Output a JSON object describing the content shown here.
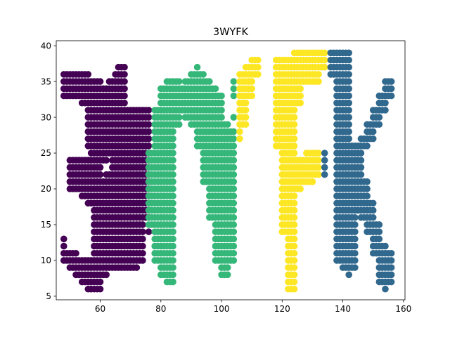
{
  "chart_data": {
    "type": "scatter",
    "title": "3WYFK",
    "xlabel": "",
    "ylabel": "",
    "xlim": [
      45.5,
      160.5
    ],
    "ylim": [
      4.5,
      40.7
    ],
    "xticks": [
      60,
      80,
      100,
      120,
      140,
      160
    ],
    "yticks": [
      5,
      10,
      15,
      20,
      25,
      30,
      35,
      40
    ],
    "grid": false,
    "legend": "none",
    "colors": {
      "purple": "#440154",
      "green": "#35b779",
      "yellow": "#fde725",
      "blue": "#31688e"
    },
    "series": [
      {
        "color": "#440154",
        "rows": [
          {
            "y": 37,
            "x0": 66,
            "x1": 68
          },
          {
            "y": 36,
            "x0": 48,
            "x1": 56
          },
          {
            "y": 36,
            "x0": 65,
            "x1": 68
          },
          {
            "y": 35,
            "x0": 48,
            "x1": 60
          },
          {
            "y": 35,
            "x0": 63,
            "x1": 68
          },
          {
            "y": 34,
            "x0": 48,
            "x1": 68
          },
          {
            "y": 33,
            "x0": 48,
            "x1": 68
          },
          {
            "y": 32,
            "x0": 54,
            "x1": 68
          },
          {
            "y": 31,
            "x0": 56,
            "x1": 76
          },
          {
            "y": 30,
            "x0": 56,
            "x1": 76
          },
          {
            "y": 29,
            "x0": 56,
            "x1": 76
          },
          {
            "y": 28,
            "x0": 56,
            "x1": 76
          },
          {
            "y": 27,
            "x0": 56,
            "x1": 76
          },
          {
            "y": 26,
            "x0": 56,
            "x1": 76
          },
          {
            "y": 25,
            "x0": 57,
            "x1": 76
          },
          {
            "y": 24,
            "x0": 50,
            "x1": 62
          },
          {
            "y": 24,
            "x0": 64,
            "x1": 76
          },
          {
            "y": 23,
            "x0": 50,
            "x1": 60
          },
          {
            "y": 23,
            "x0": 64,
            "x1": 76
          },
          {
            "y": 22,
            "x0": 50,
            "x1": 60
          },
          {
            "y": 22,
            "x0": 62,
            "x1": 76
          },
          {
            "y": 21,
            "x0": 50,
            "x1": 76
          },
          {
            "y": 20,
            "x0": 50,
            "x1": 76
          },
          {
            "y": 19,
            "x0": 54,
            "x1": 76
          },
          {
            "y": 18,
            "x0": 56,
            "x1": 76
          },
          {
            "y": 17,
            "x0": 58,
            "x1": 76
          },
          {
            "y": 16,
            "x0": 58,
            "x1": 76
          },
          {
            "y": 15,
            "x0": 58,
            "x1": 74
          },
          {
            "y": 14,
            "x0": 58,
            "x1": 74
          },
          {
            "y": 14,
            "x0": 76,
            "x1": 76
          },
          {
            "y": 13,
            "x0": 48,
            "x1": 48
          },
          {
            "y": 13,
            "x0": 58,
            "x1": 74
          },
          {
            "y": 12,
            "x0": 48,
            "x1": 48
          },
          {
            "y": 12,
            "x0": 58,
            "x1": 74
          },
          {
            "y": 11,
            "x0": 48,
            "x1": 52
          },
          {
            "y": 11,
            "x0": 58,
            "x1": 74
          },
          {
            "y": 10,
            "x0": 48,
            "x1": 74
          },
          {
            "y": 9,
            "x0": 50,
            "x1": 72
          },
          {
            "y": 8,
            "x0": 52,
            "x1": 62
          },
          {
            "y": 7,
            "x0": 54,
            "x1": 60
          },
          {
            "y": 6,
            "x0": 56,
            "x1": 60
          }
        ]
      },
      {
        "color": "#35b779",
        "rows": [
          {
            "y": 37,
            "x0": 92,
            "x1": 92
          },
          {
            "y": 36,
            "x0": 90,
            "x1": 94
          },
          {
            "y": 35,
            "x0": 82,
            "x1": 86
          },
          {
            "y": 35,
            "x0": 88,
            "x1": 96
          },
          {
            "y": 35,
            "x0": 104,
            "x1": 104
          },
          {
            "y": 34,
            "x0": 80,
            "x1": 98
          },
          {
            "y": 34,
            "x0": 104,
            "x1": 104
          },
          {
            "y": 33,
            "x0": 80,
            "x1": 100
          },
          {
            "y": 33,
            "x0": 104,
            "x1": 104
          },
          {
            "y": 32,
            "x0": 80,
            "x1": 100
          },
          {
            "y": 31,
            "x0": 78,
            "x1": 100
          },
          {
            "y": 30,
            "x0": 78,
            "x1": 86
          },
          {
            "y": 30,
            "x0": 88,
            "x1": 100
          },
          {
            "y": 30,
            "x0": 104,
            "x1": 104
          },
          {
            "y": 29,
            "x0": 78,
            "x1": 86
          },
          {
            "y": 29,
            "x0": 90,
            "x1": 102
          },
          {
            "y": 28,
            "x0": 78,
            "x1": 84
          },
          {
            "y": 28,
            "x0": 92,
            "x1": 104
          },
          {
            "y": 27,
            "x0": 78,
            "x1": 84
          },
          {
            "y": 27,
            "x0": 92,
            "x1": 104
          },
          {
            "y": 26,
            "x0": 78,
            "x1": 84
          },
          {
            "y": 26,
            "x0": 92,
            "x1": 104
          },
          {
            "y": 25,
            "x0": 76,
            "x1": 84
          },
          {
            "y": 25,
            "x0": 94,
            "x1": 104
          },
          {
            "y": 24,
            "x0": 76,
            "x1": 84
          },
          {
            "y": 24,
            "x0": 94,
            "x1": 104
          },
          {
            "y": 23,
            "x0": 76,
            "x1": 84
          },
          {
            "y": 23,
            "x0": 94,
            "x1": 104
          },
          {
            "y": 22,
            "x0": 76,
            "x1": 84
          },
          {
            "y": 22,
            "x0": 94,
            "x1": 104
          },
          {
            "y": 21,
            "x0": 76,
            "x1": 84
          },
          {
            "y": 21,
            "x0": 94,
            "x1": 104
          },
          {
            "y": 20,
            "x0": 76,
            "x1": 84
          },
          {
            "y": 20,
            "x0": 96,
            "x1": 104
          },
          {
            "y": 19,
            "x0": 76,
            "x1": 84
          },
          {
            "y": 19,
            "x0": 96,
            "x1": 104
          },
          {
            "y": 18,
            "x0": 76,
            "x1": 84
          },
          {
            "y": 18,
            "x0": 96,
            "x1": 104
          },
          {
            "y": 17,
            "x0": 76,
            "x1": 84
          },
          {
            "y": 17,
            "x0": 96,
            "x1": 104
          },
          {
            "y": 16,
            "x0": 76,
            "x1": 84
          },
          {
            "y": 16,
            "x0": 96,
            "x1": 104
          },
          {
            "y": 15,
            "x0": 76,
            "x1": 84
          },
          {
            "y": 15,
            "x0": 98,
            "x1": 104
          },
          {
            "y": 14,
            "x0": 78,
            "x1": 84
          },
          {
            "y": 14,
            "x0": 98,
            "x1": 104
          },
          {
            "y": 13,
            "x0": 78,
            "x1": 84
          },
          {
            "y": 13,
            "x0": 98,
            "x1": 104
          },
          {
            "y": 12,
            "x0": 78,
            "x1": 84
          },
          {
            "y": 12,
            "x0": 98,
            "x1": 104
          },
          {
            "y": 11,
            "x0": 78,
            "x1": 84
          },
          {
            "y": 11,
            "x0": 98,
            "x1": 104
          },
          {
            "y": 10,
            "x0": 78,
            "x1": 84
          },
          {
            "y": 10,
            "x0": 98,
            "x1": 104
          },
          {
            "y": 9,
            "x0": 80,
            "x1": 84
          },
          {
            "y": 9,
            "x0": 100,
            "x1": 102
          },
          {
            "y": 8,
            "x0": 80,
            "x1": 84
          },
          {
            "y": 8,
            "x0": 100,
            "x1": 102
          },
          {
            "y": 7,
            "x0": 82,
            "x1": 84
          }
        ]
      },
      {
        "color": "#fde725",
        "rows": [
          {
            "y": 39,
            "x0": 124,
            "x1": 134
          },
          {
            "y": 38,
            "x0": 110,
            "x1": 112
          },
          {
            "y": 38,
            "x0": 118,
            "x1": 134
          },
          {
            "y": 37,
            "x0": 108,
            "x1": 112
          },
          {
            "y": 37,
            "x0": 118,
            "x1": 134
          },
          {
            "y": 36,
            "x0": 106,
            "x1": 112
          },
          {
            "y": 36,
            "x0": 118,
            "x1": 132
          },
          {
            "y": 35,
            "x0": 106,
            "x1": 110
          },
          {
            "y": 35,
            "x0": 118,
            "x1": 132
          },
          {
            "y": 34,
            "x0": 106,
            "x1": 110
          },
          {
            "y": 34,
            "x0": 118,
            "x1": 126
          },
          {
            "y": 33,
            "x0": 106,
            "x1": 110
          },
          {
            "y": 33,
            "x0": 118,
            "x1": 126
          },
          {
            "y": 32,
            "x0": 106,
            "x1": 108
          },
          {
            "y": 32,
            "x0": 118,
            "x1": 126
          },
          {
            "y": 31,
            "x0": 106,
            "x1": 108
          },
          {
            "y": 31,
            "x0": 118,
            "x1": 124
          },
          {
            "y": 30,
            "x0": 106,
            "x1": 108
          },
          {
            "y": 30,
            "x0": 118,
            "x1": 124
          },
          {
            "y": 29,
            "x0": 106,
            "x1": 108
          },
          {
            "y": 29,
            "x0": 118,
            "x1": 124
          },
          {
            "y": 28,
            "x0": 106,
            "x1": 106
          },
          {
            "y": 28,
            "x0": 118,
            "x1": 124
          },
          {
            "y": 27,
            "x0": 106,
            "x1": 106
          },
          {
            "y": 27,
            "x0": 118,
            "x1": 124
          },
          {
            "y": 26,
            "x0": 118,
            "x1": 124
          },
          {
            "y": 25,
            "x0": 120,
            "x1": 124
          },
          {
            "y": 25,
            "x0": 128,
            "x1": 132
          },
          {
            "y": 24,
            "x0": 120,
            "x1": 132
          },
          {
            "y": 23,
            "x0": 120,
            "x1": 132
          },
          {
            "y": 22,
            "x0": 120,
            "x1": 132
          },
          {
            "y": 21,
            "x0": 120,
            "x1": 130
          },
          {
            "y": 20,
            "x0": 120,
            "x1": 126
          },
          {
            "y": 19,
            "x0": 120,
            "x1": 124
          },
          {
            "y": 18,
            "x0": 120,
            "x1": 124
          },
          {
            "y": 17,
            "x0": 120,
            "x1": 124
          },
          {
            "y": 16,
            "x0": 120,
            "x1": 124
          },
          {
            "y": 15,
            "x0": 120,
            "x1": 124
          },
          {
            "y": 14,
            "x0": 120,
            "x1": 124
          },
          {
            "y": 13,
            "x0": 122,
            "x1": 124
          },
          {
            "y": 12,
            "x0": 122,
            "x1": 124
          },
          {
            "y": 11,
            "x0": 122,
            "x1": 124
          },
          {
            "y": 10,
            "x0": 122,
            "x1": 124
          },
          {
            "y": 9,
            "x0": 122,
            "x1": 124
          },
          {
            "y": 8,
            "x0": 122,
            "x1": 124
          },
          {
            "y": 7,
            "x0": 122,
            "x1": 124
          },
          {
            "y": 6,
            "x0": 122,
            "x1": 124
          }
        ]
      },
      {
        "color": "#31688e",
        "rows": [
          {
            "y": 39,
            "x0": 136,
            "x1": 142
          },
          {
            "y": 38,
            "x0": 136,
            "x1": 142
          },
          {
            "y": 37,
            "x0": 136,
            "x1": 142
          },
          {
            "y": 36,
            "x0": 136,
            "x1": 142
          },
          {
            "y": 35,
            "x0": 138,
            "x1": 142
          },
          {
            "y": 35,
            "x0": 154,
            "x1": 156
          },
          {
            "y": 34,
            "x0": 138,
            "x1": 142
          },
          {
            "y": 34,
            "x0": 154,
            "x1": 156
          },
          {
            "y": 33,
            "x0": 138,
            "x1": 142
          },
          {
            "y": 33,
            "x0": 152,
            "x1": 156
          },
          {
            "y": 32,
            "x0": 138,
            "x1": 142
          },
          {
            "y": 32,
            "x0": 152,
            "x1": 154
          },
          {
            "y": 31,
            "x0": 138,
            "x1": 142
          },
          {
            "y": 31,
            "x0": 150,
            "x1": 154
          },
          {
            "y": 30,
            "x0": 138,
            "x1": 142
          },
          {
            "y": 30,
            "x0": 150,
            "x1": 152
          },
          {
            "y": 29,
            "x0": 138,
            "x1": 142
          },
          {
            "y": 29,
            "x0": 148,
            "x1": 152
          },
          {
            "y": 28,
            "x0": 138,
            "x1": 142
          },
          {
            "y": 28,
            "x0": 148,
            "x1": 150
          },
          {
            "y": 27,
            "x0": 138,
            "x1": 142
          },
          {
            "y": 27,
            "x0": 146,
            "x1": 150
          },
          {
            "y": 26,
            "x0": 138,
            "x1": 148
          },
          {
            "y": 25,
            "x0": 134,
            "x1": 134
          },
          {
            "y": 25,
            "x0": 138,
            "x1": 146
          },
          {
            "y": 24,
            "x0": 134,
            "x1": 134
          },
          {
            "y": 24,
            "x0": 138,
            "x1": 146
          },
          {
            "y": 23,
            "x0": 134,
            "x1": 134
          },
          {
            "y": 23,
            "x0": 138,
            "x1": 146
          },
          {
            "y": 22,
            "x0": 134,
            "x1": 134
          },
          {
            "y": 22,
            "x0": 138,
            "x1": 146
          },
          {
            "y": 21,
            "x0": 138,
            "x1": 148
          },
          {
            "y": 20,
            "x0": 138,
            "x1": 148
          },
          {
            "y": 19,
            "x0": 138,
            "x1": 148
          },
          {
            "y": 18,
            "x0": 138,
            "x1": 150
          },
          {
            "y": 17,
            "x0": 138,
            "x1": 150
          },
          {
            "y": 16,
            "x0": 138,
            "x1": 144
          },
          {
            "y": 16,
            "x0": 146,
            "x1": 150
          },
          {
            "y": 15,
            "x0": 138,
            "x1": 144
          },
          {
            "y": 15,
            "x0": 148,
            "x1": 152
          },
          {
            "y": 14,
            "x0": 138,
            "x1": 144
          },
          {
            "y": 14,
            "x0": 148,
            "x1": 152
          },
          {
            "y": 13,
            "x0": 138,
            "x1": 144
          },
          {
            "y": 13,
            "x0": 150,
            "x1": 152
          },
          {
            "y": 12,
            "x0": 138,
            "x1": 144
          },
          {
            "y": 12,
            "x0": 150,
            "x1": 154
          },
          {
            "y": 11,
            "x0": 138,
            "x1": 144
          },
          {
            "y": 11,
            "x0": 150,
            "x1": 156
          },
          {
            "y": 10,
            "x0": 138,
            "x1": 144
          },
          {
            "y": 10,
            "x0": 152,
            "x1": 156
          },
          {
            "y": 9,
            "x0": 140,
            "x1": 144
          },
          {
            "y": 9,
            "x0": 152,
            "x1": 156
          },
          {
            "y": 8,
            "x0": 142,
            "x1": 142
          },
          {
            "y": 8,
            "x0": 152,
            "x1": 156
          },
          {
            "y": 7,
            "x0": 152,
            "x1": 156
          },
          {
            "y": 6,
            "x0": 154,
            "x1": 154
          }
        ]
      }
    ]
  }
}
